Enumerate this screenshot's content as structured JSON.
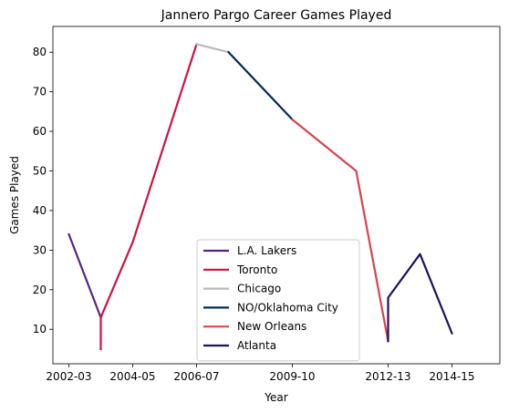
{
  "chart_data": {
    "type": "line",
    "title": "Jannero Pargo Career Games Played",
    "xlabel": "Year",
    "ylabel": "Games Played",
    "x_ticks": [
      "2002-03",
      "2004-05",
      "2006-07",
      "2009-10",
      "2012-13",
      "2014-15"
    ],
    "y_ticks": [
      10,
      20,
      30,
      40,
      50,
      60,
      70,
      80
    ],
    "legend_position": "lower-center",
    "series": [
      {
        "name": "L.A. Lakers",
        "color": "#552583",
        "points": [
          {
            "x": "2002-03",
            "y": 34
          },
          {
            "x": "2003-04",
            "y": 13
          }
        ]
      },
      {
        "name": "Toronto",
        "color": "#CE1141",
        "points": [
          {
            "x": "2003-04",
            "y": 5
          },
          {
            "x": "2003-04",
            "y": 13
          },
          {
            "x": "2004-05",
            "y": 32
          },
          {
            "x": "2006-07",
            "y": 82
          }
        ]
      },
      {
        "name": "Chicago",
        "color": "#BBBBBB",
        "points": [
          {
            "x": "2006-07",
            "y": 82
          },
          {
            "x": "2007-08",
            "y": 80
          }
        ]
      },
      {
        "name": "NO/Oklahoma City",
        "color": "#002B5C",
        "points": [
          {
            "x": "2007-08",
            "y": 80
          },
          {
            "x": "2009-10",
            "y": 63
          }
        ]
      },
      {
        "name": "New Orleans",
        "color": "#D9434B",
        "points": [
          {
            "x": "2009-10",
            "y": 63
          },
          {
            "x": "2011-12",
            "y": 50
          },
          {
            "x": "2012-13",
            "y": 7
          }
        ]
      },
      {
        "name": "Atlanta",
        "color": "#1D1160",
        "points": [
          {
            "x": "2012-13",
            "y": 7
          },
          {
            "x": "2012-13",
            "y": 18
          },
          {
            "x": "2013-14",
            "y": 29
          },
          {
            "x": "2014-15",
            "y": 9
          }
        ]
      }
    ]
  }
}
